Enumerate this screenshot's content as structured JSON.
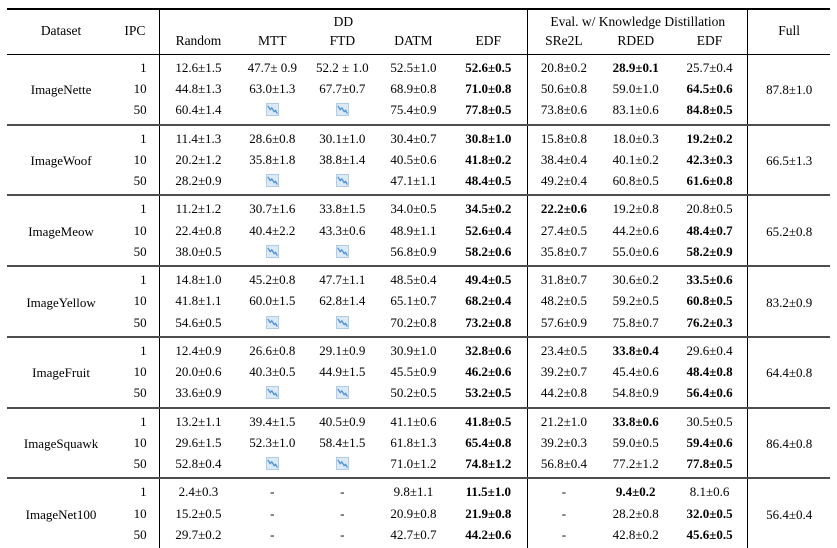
{
  "table": {
    "header": {
      "dataset": "Dataset",
      "ipc": "IPC",
      "dd_group": "DD",
      "kd_group": "Eval. w/ Knowledge Distillation",
      "full": "Full",
      "dd_cols": [
        "Random",
        "MTT",
        "FTD",
        "DATM",
        "EDF"
      ],
      "kd_cols": [
        "SRe2L",
        "RDED",
        "EDF"
      ]
    },
    "icon": {
      "name": "declining-chart-icon",
      "line_color": "#4a90d9",
      "bg_color": "#dce9f7",
      "border_color": "#aecbe8"
    },
    "separator_color": "#4d4d4d",
    "blocks": [
      {
        "dataset": "ImageNette",
        "full": "87.8±1.0",
        "rows": [
          {
            "ipc": "1",
            "cells": [
              {
                "t": "12.6±1.5"
              },
              {
                "t": "47.7± 0.9"
              },
              {
                "t": "52.2 ± 1.0"
              },
              {
                "t": "52.5±1.0"
              },
              {
                "t": "52.6±0.5",
                "b": true
              },
              {
                "t": "20.8±0.2"
              },
              {
                "t": "28.9±0.1",
                "b": true
              },
              {
                "t": "25.7±0.4"
              }
            ]
          },
          {
            "ipc": "10",
            "cells": [
              {
                "t": "44.8±1.3"
              },
              {
                "t": "63.0±1.3"
              },
              {
                "t": "67.7±0.7"
              },
              {
                "t": "68.9±0.8"
              },
              {
                "t": "71.0±0.8",
                "b": true
              },
              {
                "t": "50.6±0.8"
              },
              {
                "t": "59.0±1.0"
              },
              {
                "t": "64.5±0.6",
                "b": true
              }
            ]
          },
          {
            "ipc": "50",
            "cells": [
              {
                "t": "60.4±1.4"
              },
              {
                "i": true
              },
              {
                "i": true
              },
              {
                "t": "75.4±0.9"
              },
              {
                "t": "77.8±0.5",
                "b": true
              },
              {
                "t": "73.8±0.6"
              },
              {
                "t": "83.1±0.6"
              },
              {
                "t": "84.8±0.5",
                "b": true
              }
            ]
          }
        ]
      },
      {
        "dataset": "ImageWoof",
        "full": "66.5±1.3",
        "rows": [
          {
            "ipc": "1",
            "cells": [
              {
                "t": "11.4±1.3"
              },
              {
                "t": "28.6±0.8"
              },
              {
                "t": "30.1±1.0"
              },
              {
                "t": "30.4±0.7"
              },
              {
                "t": "30.8±1.0",
                "b": true
              },
              {
                "t": "15.8±0.8"
              },
              {
                "t": "18.0±0.3"
              },
              {
                "t": "19.2±0.2",
                "b": true
              }
            ]
          },
          {
            "ipc": "10",
            "cells": [
              {
                "t": "20.2±1.2"
              },
              {
                "t": "35.8±1.8"
              },
              {
                "t": "38.8±1.4"
              },
              {
                "t": "40.5±0.6"
              },
              {
                "t": "41.8±0.2",
                "b": true
              },
              {
                "t": "38.4±0.4"
              },
              {
                "t": "40.1±0.2"
              },
              {
                "t": "42.3±0.3",
                "b": true
              }
            ]
          },
          {
            "ipc": "50",
            "cells": [
              {
                "t": "28.2±0.9"
              },
              {
                "i": true
              },
              {
                "i": true
              },
              {
                "t": "47.1±1.1"
              },
              {
                "t": "48.4±0.5",
                "b": true
              },
              {
                "t": "49.2±0.4"
              },
              {
                "t": "60.8±0.5"
              },
              {
                "t": "61.6±0.8",
                "b": true
              }
            ]
          }
        ]
      },
      {
        "dataset": "ImageMeow",
        "full": "65.2±0.8",
        "rows": [
          {
            "ipc": "1",
            "cells": [
              {
                "t": "11.2±1.2"
              },
              {
                "t": "30.7±1.6"
              },
              {
                "t": "33.8±1.5"
              },
              {
                "t": "34.0±0.5"
              },
              {
                "t": "34.5±0.2",
                "b": true
              },
              {
                "t": "22.2±0.6",
                "b": true
              },
              {
                "t": "19.2±0.8"
              },
              {
                "t": "20.8±0.5"
              }
            ]
          },
          {
            "ipc": "10",
            "cells": [
              {
                "t": "22.4±0.8"
              },
              {
                "t": "40.4±2.2"
              },
              {
                "t": "43.3±0.6"
              },
              {
                "t": "48.9±1.1"
              },
              {
                "t": "52.6±0.4",
                "b": true
              },
              {
                "t": "27.4±0.5"
              },
              {
                "t": "44.2±0.6"
              },
              {
                "t": "48.4±0.7",
                "b": true
              }
            ]
          },
          {
            "ipc": "50",
            "cells": [
              {
                "t": "38.0±0.5"
              },
              {
                "i": true
              },
              {
                "i": true
              },
              {
                "t": "56.8±0.9"
              },
              {
                "t": "58.2±0.6",
                "b": true
              },
              {
                "t": "35.8±0.7"
              },
              {
                "t": "55.0±0.6"
              },
              {
                "t": "58.2±0.9",
                "b": true
              }
            ]
          }
        ]
      },
      {
        "dataset": "ImageYellow",
        "full": "83.2±0.9",
        "rows": [
          {
            "ipc": "1",
            "cells": [
              {
                "t": "14.8±1.0"
              },
              {
                "t": "45.2±0.8"
              },
              {
                "t": "47.7±1.1"
              },
              {
                "t": "48.5±0.4"
              },
              {
                "t": "49.4±0.5",
                "b": true
              },
              {
                "t": "31.8±0.7"
              },
              {
                "t": "30.6±0.2"
              },
              {
                "t": "33.5±0.6",
                "b": true
              }
            ]
          },
          {
            "ipc": "10",
            "cells": [
              {
                "t": "41.8±1.1"
              },
              {
                "t": "60.0±1.5"
              },
              {
                "t": "62.8±1.4"
              },
              {
                "t": "65.1±0.7"
              },
              {
                "t": "68.2±0.4",
                "b": true
              },
              {
                "t": "48.2±0.5"
              },
              {
                "t": "59.2±0.5"
              },
              {
                "t": "60.8±0.5",
                "b": true
              }
            ]
          },
          {
            "ipc": "50",
            "cells": [
              {
                "t": "54.6±0.5"
              },
              {
                "i": true
              },
              {
                "i": true
              },
              {
                "t": "70.2±0.8"
              },
              {
                "t": "73.2±0.8",
                "b": true
              },
              {
                "t": "57.6±0.9"
              },
              {
                "t": "75.8±0.7"
              },
              {
                "t": "76.2±0.3",
                "b": true
              }
            ]
          }
        ]
      },
      {
        "dataset": "ImageFruit",
        "full": "64.4±0.8",
        "rows": [
          {
            "ipc": "1",
            "cells": [
              {
                "t": "12.4±0.9"
              },
              {
                "t": "26.6±0.8"
              },
              {
                "t": "29.1±0.9"
              },
              {
                "t": "30.9±1.0"
              },
              {
                "t": "32.8±0.6",
                "b": true
              },
              {
                "t": "23.4±0.5"
              },
              {
                "t": "33.8±0.4",
                "b": true
              },
              {
                "t": "29.6±0.4"
              }
            ]
          },
          {
            "ipc": "10",
            "cells": [
              {
                "t": "20.0±0.6"
              },
              {
                "t": "40.3±0.5"
              },
              {
                "t": "44.9±1.5"
              },
              {
                "t": "45.5±0.9"
              },
              {
                "t": "46.2±0.6",
                "b": true
              },
              {
                "t": "39.2±0.7"
              },
              {
                "t": "45.4±0.6"
              },
              {
                "t": "48.4±0.8",
                "b": true
              }
            ]
          },
          {
            "ipc": "50",
            "cells": [
              {
                "t": "33.6±0.9"
              },
              {
                "i": true
              },
              {
                "i": true
              },
              {
                "t": "50.2±0.5"
              },
              {
                "t": "53.2±0.5",
                "b": true
              },
              {
                "t": "44.2±0.8"
              },
              {
                "t": "54.8±0.9"
              },
              {
                "t": "56.4±0.6",
                "b": true
              }
            ]
          }
        ]
      },
      {
        "dataset": "ImageSquawk",
        "full": "86.4±0.8",
        "rows": [
          {
            "ipc": "1",
            "cells": [
              {
                "t": "13.2±1.1"
              },
              {
                "t": "39.4±1.5"
              },
              {
                "t": "40.5±0.9"
              },
              {
                "t": "41.1±0.6"
              },
              {
                "t": "41.8±0.5",
                "b": true
              },
              {
                "t": "21.2±1.0"
              },
              {
                "t": "33.8±0.6",
                "b": true
              },
              {
                "t": "30.5±0.5"
              }
            ]
          },
          {
            "ipc": "10",
            "cells": [
              {
                "t": "29.6±1.5"
              },
              {
                "t": "52.3±1.0"
              },
              {
                "t": "58.4±1.5"
              },
              {
                "t": "61.8±1.3"
              },
              {
                "t": "65.4±0.8",
                "b": true
              },
              {
                "t": "39.2±0.3"
              },
              {
                "t": "59.0±0.5"
              },
              {
                "t": "59.4±0.6",
                "b": true
              }
            ]
          },
          {
            "ipc": "50",
            "cells": [
              {
                "t": "52.8±0.4"
              },
              {
                "i": true
              },
              {
                "i": true
              },
              {
                "t": "71.0±1.2"
              },
              {
                "t": "74.8±1.2",
                "b": true
              },
              {
                "t": "56.8±0.4"
              },
              {
                "t": "77.2±1.2"
              },
              {
                "t": "77.8±0.5",
                "b": true
              }
            ]
          }
        ]
      },
      {
        "dataset": "ImageNet100",
        "full": "56.4±0.4",
        "rows": [
          {
            "ipc": "1",
            "cells": [
              {
                "t": "2.4±0.3"
              },
              {
                "t": "-"
              },
              {
                "t": "-"
              },
              {
                "t": "9.8±1.1"
              },
              {
                "t": "11.5±1.0",
                "b": true
              },
              {
                "t": "-"
              },
              {
                "t": "9.4±0.2",
                "b": true
              },
              {
                "t": "8.1±0.6"
              }
            ]
          },
          {
            "ipc": "10",
            "cells": [
              {
                "t": "15.2±0.5"
              },
              {
                "t": "-"
              },
              {
                "t": "-"
              },
              {
                "t": "20.9±0.8"
              },
              {
                "t": "21.9±0.8",
                "b": true
              },
              {
                "t": "-"
              },
              {
                "t": "28.2±0.8"
              },
              {
                "t": "32.0±0.5",
                "b": true
              }
            ]
          },
          {
            "ipc": "50",
            "cells": [
              {
                "t": "29.7±0.2"
              },
              {
                "t": "-"
              },
              {
                "t": "-"
              },
              {
                "t": "42.7±0.7"
              },
              {
                "t": "44.2±0.6",
                "b": true
              },
              {
                "t": "-"
              },
              {
                "t": "42.8±0.2"
              },
              {
                "t": "45.6±0.5",
                "b": true
              }
            ]
          }
        ]
      }
    ]
  }
}
